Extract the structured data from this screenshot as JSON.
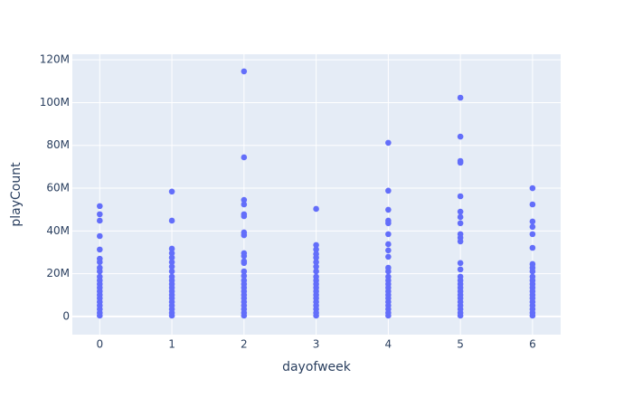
{
  "chart_data": {
    "type": "scatter",
    "xlabel": "dayofweek",
    "ylabel": "playCount",
    "color": "#636efa",
    "grid": true,
    "x": [
      0,
      0,
      0,
      0,
      0,
      0,
      0,
      0,
      0,
      0,
      0,
      0,
      0,
      0,
      0,
      0,
      0,
      0,
      0,
      0,
      0,
      1,
      1,
      1,
      1,
      1,
      1,
      1,
      1,
      1,
      1,
      1,
      1,
      1,
      1,
      1,
      1,
      1,
      1,
      1,
      1,
      2,
      2,
      2,
      2,
      2,
      2,
      2,
      2,
      2,
      2,
      2,
      2,
      2,
      2,
      2,
      2,
      2,
      2,
      2,
      2,
      2,
      2,
      2,
      2,
      2,
      3,
      3,
      3,
      3,
      3,
      3,
      3,
      3,
      3,
      3,
      3,
      3,
      3,
      3,
      3,
      3,
      3,
      3,
      3,
      3,
      4,
      4,
      4,
      4,
      4,
      4,
      4,
      4,
      4,
      4,
      4,
      4,
      4,
      4,
      4,
      4,
      4,
      4,
      4,
      4,
      4,
      4,
      4,
      5,
      5,
      5,
      5,
      5,
      5,
      5,
      5,
      5,
      5,
      5,
      5,
      5,
      5,
      5,
      5,
      5,
      5,
      5,
      5,
      5,
      5,
      5,
      5,
      5,
      6,
      6,
      6,
      6,
      6,
      6,
      6,
      6,
      6,
      6,
      6,
      6,
      6,
      6,
      6,
      6,
      6,
      6,
      6,
      6,
      6
    ],
    "values": [
      51600000,
      47800000,
      44800000,
      37600000,
      31300000,
      27000000,
      25400000,
      22800000,
      21100000,
      18600000,
      16900000,
      15200000,
      13500000,
      11800000,
      10100000,
      8500000,
      6800000,
      5100000,
      3400000,
      1700000,
      400000,
      58400000,
      44800000,
      31700000,
      29600000,
      27500000,
      25400000,
      23300000,
      21100000,
      18600000,
      16900000,
      15200000,
      13500000,
      11800000,
      10100000,
      8500000,
      6800000,
      5100000,
      3400000,
      1700000,
      400000,
      114600000,
      74400000,
      54500000,
      52400000,
      47800000,
      46900000,
      39300000,
      38000000,
      29600000,
      28300000,
      25800000,
      25000000,
      21100000,
      19000000,
      16900000,
      15200000,
      13500000,
      11800000,
      10100000,
      8500000,
      6800000,
      5100000,
      3400000,
      1700000,
      400000,
      50300000,
      33400000,
      31300000,
      29200000,
      27500000,
      25400000,
      23300000,
      21100000,
      18600000,
      16900000,
      15200000,
      13500000,
      11800000,
      10100000,
      8500000,
      6800000,
      5100000,
      3400000,
      1700000,
      400000,
      81200000,
      58800000,
      49900000,
      44800000,
      43600000,
      38500000,
      33800000,
      30900000,
      27900000,
      22800000,
      21100000,
      18600000,
      16900000,
      15200000,
      13500000,
      11800000,
      10100000,
      8500000,
      6800000,
      5100000,
      3400000,
      1700000,
      400000,
      102300000,
      84100000,
      72700000,
      71900000,
      56200000,
      49000000,
      46500000,
      43600000,
      38500000,
      36800000,
      35100000,
      25000000,
      22000000,
      18600000,
      16900000,
      15200000,
      13500000,
      11800000,
      10100000,
      8500000,
      6800000,
      5100000,
      3400000,
      1700000,
      400000,
      60000000,
      52400000,
      44400000,
      41900000,
      38500000,
      32100000,
      24500000,
      22800000,
      21100000,
      18600000,
      16900000,
      15200000,
      13500000,
      11800000,
      10100000,
      8500000,
      6800000,
      5100000,
      3400000,
      1700000,
      400000
    ],
    "xlim": [
      -0.38,
      6.39
    ],
    "xticks": [
      0,
      1,
      2,
      3,
      4,
      5,
      6
    ],
    "ylim": [
      -8500000,
      122600000
    ],
    "yticks": [
      0,
      {
        "value": 20000000,
        "label": "20M"
      },
      {
        "value": 40000000,
        "label": "40M"
      },
      {
        "value": 60000000,
        "label": "60M"
      },
      {
        "value": 80000000,
        "label": "80M"
      },
      {
        "value": 100000000,
        "label": "100M"
      },
      {
        "value": 120000000,
        "label": "120M"
      }
    ]
  }
}
